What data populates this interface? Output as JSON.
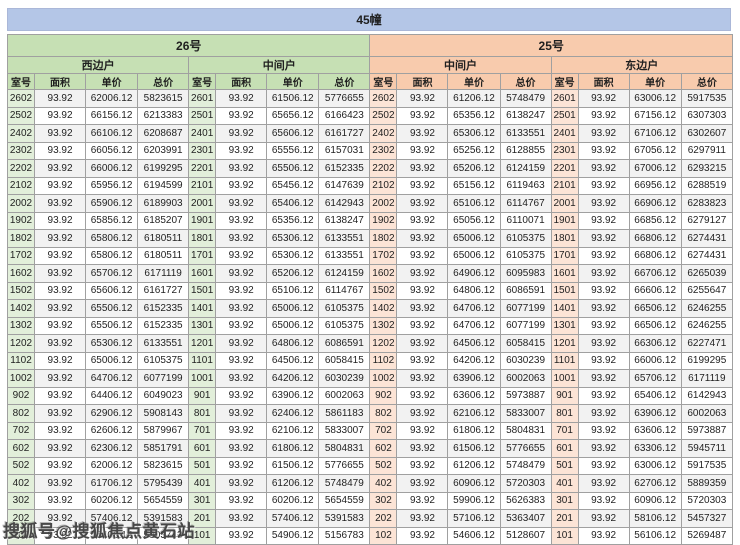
{
  "title": "45幢",
  "watermark": "搜狐号@搜狐焦点黄石站",
  "colors": {
    "top_band": "#b4c6e7",
    "green_band": "#c6e0b4",
    "green_light": "#e2efda",
    "orange_band": "#f8cbad",
    "orange_light": "#fce4d6",
    "alt_row": "#f2f2f2",
    "grid_line": "#a0a0a0"
  },
  "buildings": [
    {
      "name": "26号",
      "groups": [
        "西边户",
        "中间户"
      ]
    },
    {
      "name": "25号",
      "groups": [
        "中间户",
        "东边户"
      ]
    }
  ],
  "column_headers": [
    "室号",
    "面积",
    "单价",
    "总价"
  ],
  "rows": [
    [
      "2602",
      "93.92",
      "62006.12",
      "5823615",
      "2601",
      "93.92",
      "61506.12",
      "5776655",
      "2602",
      "93.92",
      "61206.12",
      "5748479",
      "2601",
      "93.92",
      "63006.12",
      "5917535"
    ],
    [
      "2502",
      "93.92",
      "66156.12",
      "6213383",
      "2501",
      "93.92",
      "65656.12",
      "6166423",
      "2502",
      "93.92",
      "65356.12",
      "6138247",
      "2501",
      "93.92",
      "67156.12",
      "6307303"
    ],
    [
      "2402",
      "93.92",
      "66106.12",
      "6208687",
      "2401",
      "93.92",
      "65606.12",
      "6161727",
      "2402",
      "93.92",
      "65306.12",
      "6133551",
      "2401",
      "93.92",
      "67106.12",
      "6302607"
    ],
    [
      "2302",
      "93.92",
      "66056.12",
      "6203991",
      "2301",
      "93.92",
      "65556.12",
      "6157031",
      "2302",
      "93.92",
      "65256.12",
      "6128855",
      "2301",
      "93.92",
      "67056.12",
      "6297911"
    ],
    [
      "2202",
      "93.92",
      "66006.12",
      "6199295",
      "2201",
      "93.92",
      "65506.12",
      "6152335",
      "2202",
      "93.92",
      "65206.12",
      "6124159",
      "2201",
      "93.92",
      "67006.12",
      "6293215"
    ],
    [
      "2102",
      "93.92",
      "65956.12",
      "6194599",
      "2101",
      "93.92",
      "65456.12",
      "6147639",
      "2102",
      "93.92",
      "65156.12",
      "6119463",
      "2101",
      "93.92",
      "66956.12",
      "6288519"
    ],
    [
      "2002",
      "93.92",
      "65906.12",
      "6189903",
      "2001",
      "93.92",
      "65406.12",
      "6142943",
      "2002",
      "93.92",
      "65106.12",
      "6114767",
      "2001",
      "93.92",
      "66906.12",
      "6283823"
    ],
    [
      "1902",
      "93.92",
      "65856.12",
      "6185207",
      "1901",
      "93.92",
      "65356.12",
      "6138247",
      "1902",
      "93.92",
      "65056.12",
      "6110071",
      "1901",
      "93.92",
      "66856.12",
      "6279127"
    ],
    [
      "1802",
      "93.92",
      "65806.12",
      "6180511",
      "1801",
      "93.92",
      "65306.12",
      "6133551",
      "1802",
      "93.92",
      "65006.12",
      "6105375",
      "1801",
      "93.92",
      "66806.12",
      "6274431"
    ],
    [
      "1702",
      "93.92",
      "65806.12",
      "6180511",
      "1701",
      "93.92",
      "65306.12",
      "6133551",
      "1702",
      "93.92",
      "65006.12",
      "6105375",
      "1701",
      "93.92",
      "66806.12",
      "6274431"
    ],
    [
      "1602",
      "93.92",
      "65706.12",
      "6171119",
      "1601",
      "93.92",
      "65206.12",
      "6124159",
      "1602",
      "93.92",
      "64906.12",
      "6095983",
      "1601",
      "93.92",
      "66706.12",
      "6265039"
    ],
    [
      "1502",
      "93.92",
      "65606.12",
      "6161727",
      "1501",
      "93.92",
      "65106.12",
      "6114767",
      "1502",
      "93.92",
      "64806.12",
      "6086591",
      "1501",
      "93.92",
      "66606.12",
      "6255647"
    ],
    [
      "1402",
      "93.92",
      "65506.12",
      "6152335",
      "1401",
      "93.92",
      "65006.12",
      "6105375",
      "1402",
      "93.92",
      "64706.12",
      "6077199",
      "1401",
      "93.92",
      "66506.12",
      "6246255"
    ],
    [
      "1302",
      "93.92",
      "65506.12",
      "6152335",
      "1301",
      "93.92",
      "65006.12",
      "6105375",
      "1302",
      "93.92",
      "64706.12",
      "6077199",
      "1301",
      "93.92",
      "66506.12",
      "6246255"
    ],
    [
      "1202",
      "93.92",
      "65306.12",
      "6133551",
      "1201",
      "93.92",
      "64806.12",
      "6086591",
      "1202",
      "93.92",
      "64506.12",
      "6058415",
      "1201",
      "93.92",
      "66306.12",
      "6227471"
    ],
    [
      "1102",
      "93.92",
      "65006.12",
      "6105375",
      "1101",
      "93.92",
      "64506.12",
      "6058415",
      "1102",
      "93.92",
      "64206.12",
      "6030239",
      "1101",
      "93.92",
      "66006.12",
      "6199295"
    ],
    [
      "1002",
      "93.92",
      "64706.12",
      "6077199",
      "1001",
      "93.92",
      "64206.12",
      "6030239",
      "1002",
      "93.92",
      "63906.12",
      "6002063",
      "1001",
      "93.92",
      "65706.12",
      "6171119"
    ],
    [
      "902",
      "93.92",
      "64406.12",
      "6049023",
      "901",
      "93.92",
      "63906.12",
      "6002063",
      "902",
      "93.92",
      "63606.12",
      "5973887",
      "901",
      "93.92",
      "65406.12",
      "6142943"
    ],
    [
      "802",
      "93.92",
      "62906.12",
      "5908143",
      "801",
      "93.92",
      "62406.12",
      "5861183",
      "802",
      "93.92",
      "62106.12",
      "5833007",
      "801",
      "93.92",
      "63906.12",
      "6002063"
    ],
    [
      "702",
      "93.92",
      "62606.12",
      "5879967",
      "701",
      "93.92",
      "62106.12",
      "5833007",
      "702",
      "93.92",
      "61806.12",
      "5804831",
      "701",
      "93.92",
      "63606.12",
      "5973887"
    ],
    [
      "602",
      "93.92",
      "62306.12",
      "5851791",
      "601",
      "93.92",
      "61806.12",
      "5804831",
      "602",
      "93.92",
      "61506.12",
      "5776655",
      "601",
      "93.92",
      "63306.12",
      "5945711"
    ],
    [
      "502",
      "93.92",
      "62006.12",
      "5823615",
      "501",
      "93.92",
      "61506.12",
      "5776655",
      "502",
      "93.92",
      "61206.12",
      "5748479",
      "501",
      "93.92",
      "63006.12",
      "5917535"
    ],
    [
      "402",
      "93.92",
      "61706.12",
      "5795439",
      "401",
      "93.92",
      "61206.12",
      "5748479",
      "402",
      "93.92",
      "60906.12",
      "5720303",
      "401",
      "93.92",
      "62706.12",
      "5889359"
    ],
    [
      "302",
      "93.92",
      "60206.12",
      "5654559",
      "301",
      "93.92",
      "60206.12",
      "5654559",
      "302",
      "93.92",
      "59906.12",
      "5626383",
      "301",
      "93.92",
      "60906.12",
      "5720303"
    ],
    [
      "202",
      "93.92",
      "57406.12",
      "5391583",
      "201",
      "93.92",
      "57406.12",
      "5391583",
      "202",
      "93.92",
      "57106.12",
      "5363407",
      "201",
      "93.92",
      "58106.12",
      "5457327"
    ],
    [
      "102",
      "93.92",
      "55406.12",
      "5203743",
      "101",
      "93.92",
      "54906.12",
      "5156783",
      "102",
      "93.92",
      "54606.12",
      "5128607",
      "101",
      "93.92",
      "56106.12",
      "5269487"
    ]
  ]
}
